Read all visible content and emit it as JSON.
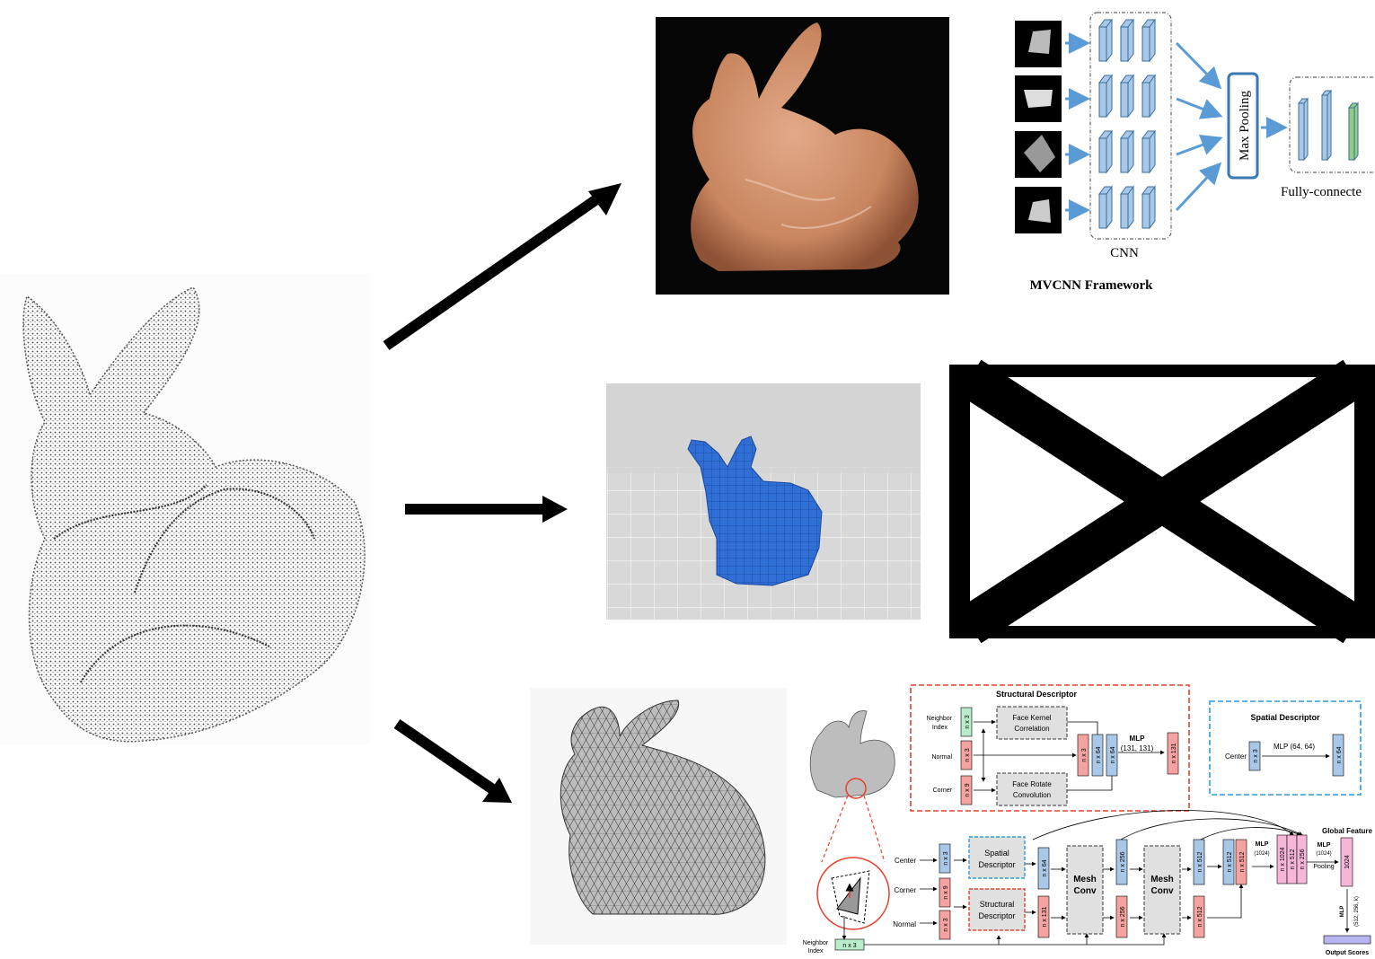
{
  "mvcnn": {
    "cnn_label": "CNN",
    "max_pooling": "Max Pooling",
    "fully_connected": "Fully-connecte",
    "framework_title": "MVCNN Framework"
  },
  "meshnet": {
    "structural_title": "Structural Descriptor",
    "spatial_title": "Spatial Descriptor",
    "neighbor_index": [
      "Neighbor",
      "Index"
    ],
    "normal": "Normal",
    "corner": "Corner",
    "center": "Center",
    "face_kernel": [
      "Face Kernel",
      "Correlation"
    ],
    "face_rotate": [
      "Face Rotate",
      "Convolution"
    ],
    "mlp_131": [
      "MLP",
      "(131, 131)"
    ],
    "mlp_64": "MLP (64, 64)",
    "spatial_desc": [
      "Spatial",
      "Descriptor"
    ],
    "structural_desc": [
      "Structural",
      "Descriptor"
    ],
    "mesh_conv": [
      "Mesh",
      "Conv"
    ],
    "mlp_1024": [
      "MLP",
      "(1024)"
    ],
    "global_feature": "Global Feature",
    "pooling": [
      "MLP",
      "(1024)",
      "Pooling"
    ],
    "mlp_final": [
      "MLP",
      "(512, 256, k)"
    ],
    "output_scores": "Output Scores",
    "dims": {
      "n3": "n x 3",
      "n9": "n x 9",
      "n64": "n x 64",
      "n131": "n x 131",
      "n256": "n x 256",
      "n512": "n x 512",
      "n1024": "n x 1024",
      "d1024": "1024"
    }
  },
  "colors": {
    "blue_block": "#a9c8e8",
    "green_block": "#8fcf7f",
    "red_block": "#f4a3a0",
    "pink_block": "#f7b6d8",
    "green_tag": "#b9ecc9",
    "purple_out": "#b7b5ef",
    "arrow_blue": "#5b9bd5",
    "voxel_blue": "#2f6fd6",
    "red_dash": "#e8402a",
    "blue_dash": "#2d9be0"
  }
}
